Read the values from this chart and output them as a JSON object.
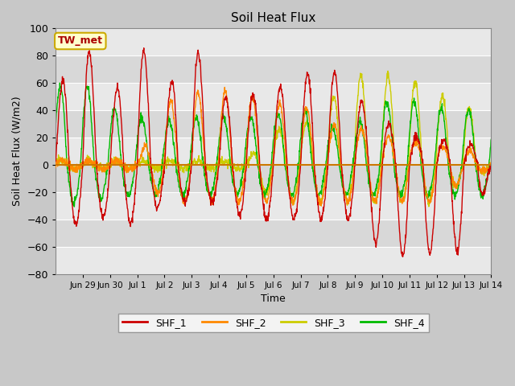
{
  "title": "Soil Heat Flux",
  "ylabel": "Soil Heat Flux (W/m2)",
  "xlabel": "Time",
  "ylim": [
    -80,
    100
  ],
  "line_colors": [
    "#cc0000",
    "#ff8800",
    "#cccc00",
    "#00bb00"
  ],
  "legend_labels": [
    "SHF_1",
    "SHF_2",
    "SHF_3",
    "SHF_4"
  ],
  "annotation_text": "TW_met",
  "annotation_bg": "#ffffcc",
  "annotation_border": "#ccaa00",
  "hline_color": "#cc7700",
  "fig_bg": "#c8c8c8",
  "ax_bg": "#e8e8e8",
  "band_colors": [
    "#e8e8e8",
    "#d8d8d8"
  ],
  "grid_color": "white",
  "tick_labels": [
    "Jun 29",
    "Jun 30",
    "Jul 1",
    "Jul 2",
    "Jul 3",
    "Jul 4",
    "Jul 5",
    "Jul 6",
    "Jul 7",
    "Jul 8",
    "Jul 9",
    "Jul 10",
    "Jul 11",
    "Jul 12",
    "Jul 13",
    "Jul 14"
  ],
  "shf1_pos": [
    50,
    95,
    43,
    95,
    50,
    93,
    50,
    50,
    55,
    65,
    73,
    52,
    32,
    22,
    18,
    17,
    10
  ],
  "shf1_neg": [
    47,
    42,
    37,
    44,
    27,
    27,
    27,
    40,
    40,
    40,
    40,
    40,
    63,
    68,
    63,
    63,
    5
  ],
  "shf2_pos": [
    3,
    3,
    3,
    3,
    45,
    52,
    55,
    52,
    45,
    45,
    30,
    28,
    22,
    18,
    15,
    12,
    5
  ],
  "shf2_neg": [
    3,
    3,
    3,
    3,
    27,
    27,
    27,
    27,
    27,
    27,
    27,
    27,
    27,
    27,
    27,
    10,
    3
  ],
  "shf3_pos": [
    3,
    3,
    3,
    3,
    3,
    3,
    3,
    3,
    25,
    28,
    46,
    66,
    66,
    64,
    50,
    50,
    5
  ],
  "shf3_neg": [
    3,
    3,
    3,
    3,
    3,
    3,
    3,
    3,
    27,
    27,
    27,
    27,
    27,
    27,
    27,
    10,
    3
  ],
  "shf4_pos": [
    57,
    60,
    42,
    35,
    32,
    35,
    35,
    35,
    37,
    41,
    28,
    28,
    46,
    48,
    42,
    41,
    40
  ],
  "shf4_neg": [
    28,
    28,
    23,
    22,
    22,
    22,
    22,
    22,
    22,
    22,
    22,
    22,
    22,
    22,
    22,
    22,
    22
  ],
  "shf1_phase": 0.0,
  "shf2_phase": 0.02,
  "shf3_phase": 0.04,
  "shf4_phase": 0.08
}
